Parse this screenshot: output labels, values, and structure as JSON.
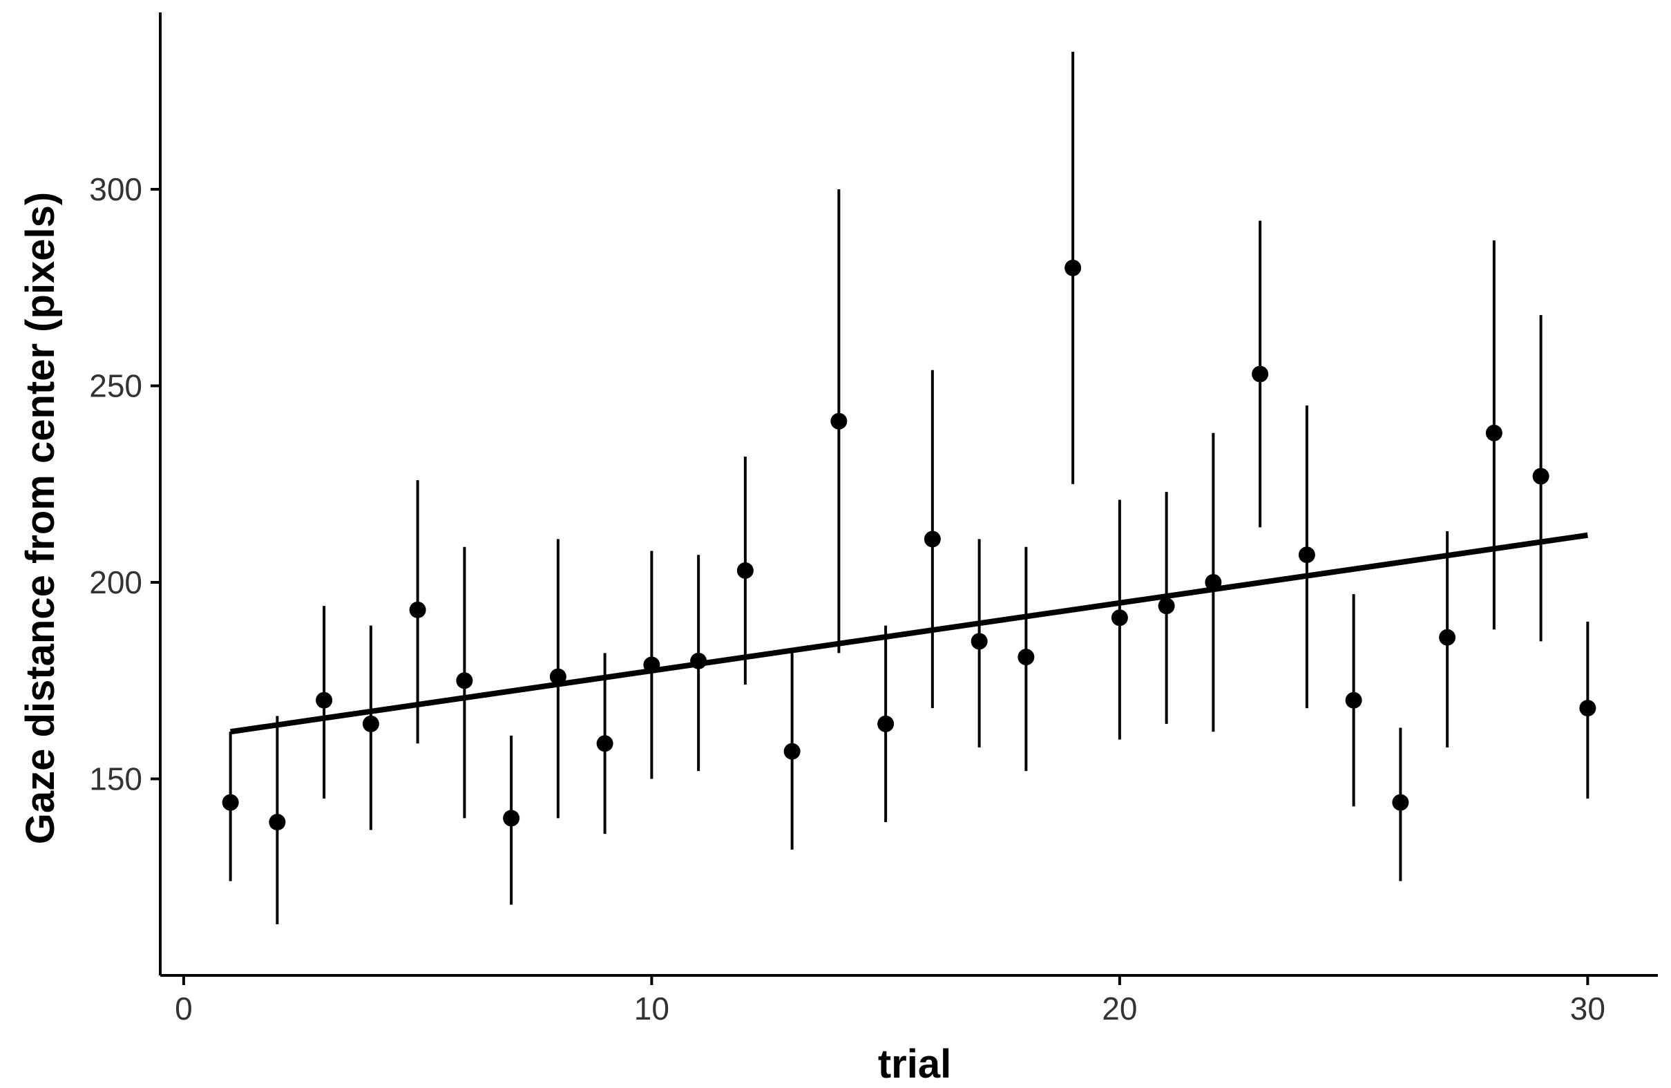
{
  "chart_data": {
    "type": "scatter",
    "title": "",
    "xlabel": "trial",
    "ylabel": "Gaze distance from center (pixels)",
    "xlim": [
      -0.5,
      31.5
    ],
    "ylim": [
      100,
      345
    ],
    "xticks": [
      0,
      10,
      20,
      30
    ],
    "yticks": [
      150,
      200,
      250,
      300
    ],
    "grid": false,
    "legend": "none",
    "colors": {
      "points": "#000000",
      "errorbars": "#000000",
      "trendline": "#000000",
      "axis": "#000000",
      "ticklabels": "#333333"
    },
    "series": [
      {
        "x": [
          1,
          2,
          3,
          4,
          5,
          6,
          7,
          8,
          9,
          10,
          11,
          12,
          13,
          14,
          15,
          16,
          17,
          18,
          19,
          20,
          21,
          22,
          23,
          24,
          25,
          26,
          27,
          28,
          29,
          30
        ],
        "y": [
          144,
          139,
          170,
          164,
          193,
          175,
          140,
          176,
          159,
          179,
          180,
          203,
          157,
          241,
          164,
          211,
          185,
          181,
          280,
          191,
          194,
          200,
          253,
          207,
          170,
          144,
          186,
          238,
          227,
          168
        ],
        "ymin": [
          124,
          113,
          145,
          137,
          159,
          140,
          118,
          140,
          136,
          150,
          152,
          174,
          132,
          182,
          139,
          168,
          158,
          152,
          225,
          160,
          164,
          162,
          214,
          168,
          143,
          124,
          158,
          188,
          185,
          145
        ],
        "ymax": [
          162,
          166,
          194,
          189,
          226,
          209,
          161,
          211,
          182,
          208,
          207,
          232,
          182,
          300,
          189,
          254,
          211,
          209,
          335,
          221,
          223,
          238,
          292,
          245,
          197,
          163,
          213,
          287,
          268,
          190
        ]
      }
    ],
    "trendline": {
      "type": "linear",
      "x": [
        1,
        30
      ],
      "y": [
        162,
        212
      ]
    }
  }
}
